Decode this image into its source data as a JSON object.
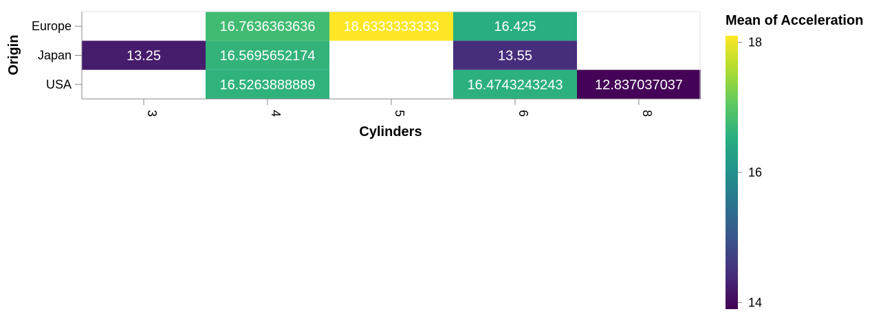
{
  "chart_data": {
    "type": "heatmap",
    "x_categories": [
      "3",
      "4",
      "5",
      "6",
      "8"
    ],
    "y_categories": [
      "Europe",
      "Japan",
      "USA"
    ],
    "xlabel": "Cylinders",
    "ylabel": "Origin",
    "cells": [
      {
        "x": "4",
        "y": "Europe",
        "value": 16.7636363636,
        "label": "16.7636363636"
      },
      {
        "x": "5",
        "y": "Europe",
        "value": 18.6333333333,
        "label": "18.6333333333"
      },
      {
        "x": "6",
        "y": "Europe",
        "value": 16.425,
        "label": "16.425"
      },
      {
        "x": "3",
        "y": "Japan",
        "value": 13.25,
        "label": "13.25"
      },
      {
        "x": "4",
        "y": "Japan",
        "value": 16.5695652174,
        "label": "16.5695652174"
      },
      {
        "x": "6",
        "y": "Japan",
        "value": 13.55,
        "label": "13.55"
      },
      {
        "x": "4",
        "y": "USA",
        "value": 16.5263888889,
        "label": "16.5263888889"
      },
      {
        "x": "6",
        "y": "USA",
        "value": 16.4743243243,
        "label": "16.4743243243"
      },
      {
        "x": "8",
        "y": "USA",
        "value": 12.837037037,
        "label": "12.837037037"
      }
    ],
    "legend": {
      "title": "Mean of Acceleration",
      "ticks": [
        "18",
        "16",
        "14"
      ],
      "scale": "viridis",
      "placement": "right"
    }
  }
}
